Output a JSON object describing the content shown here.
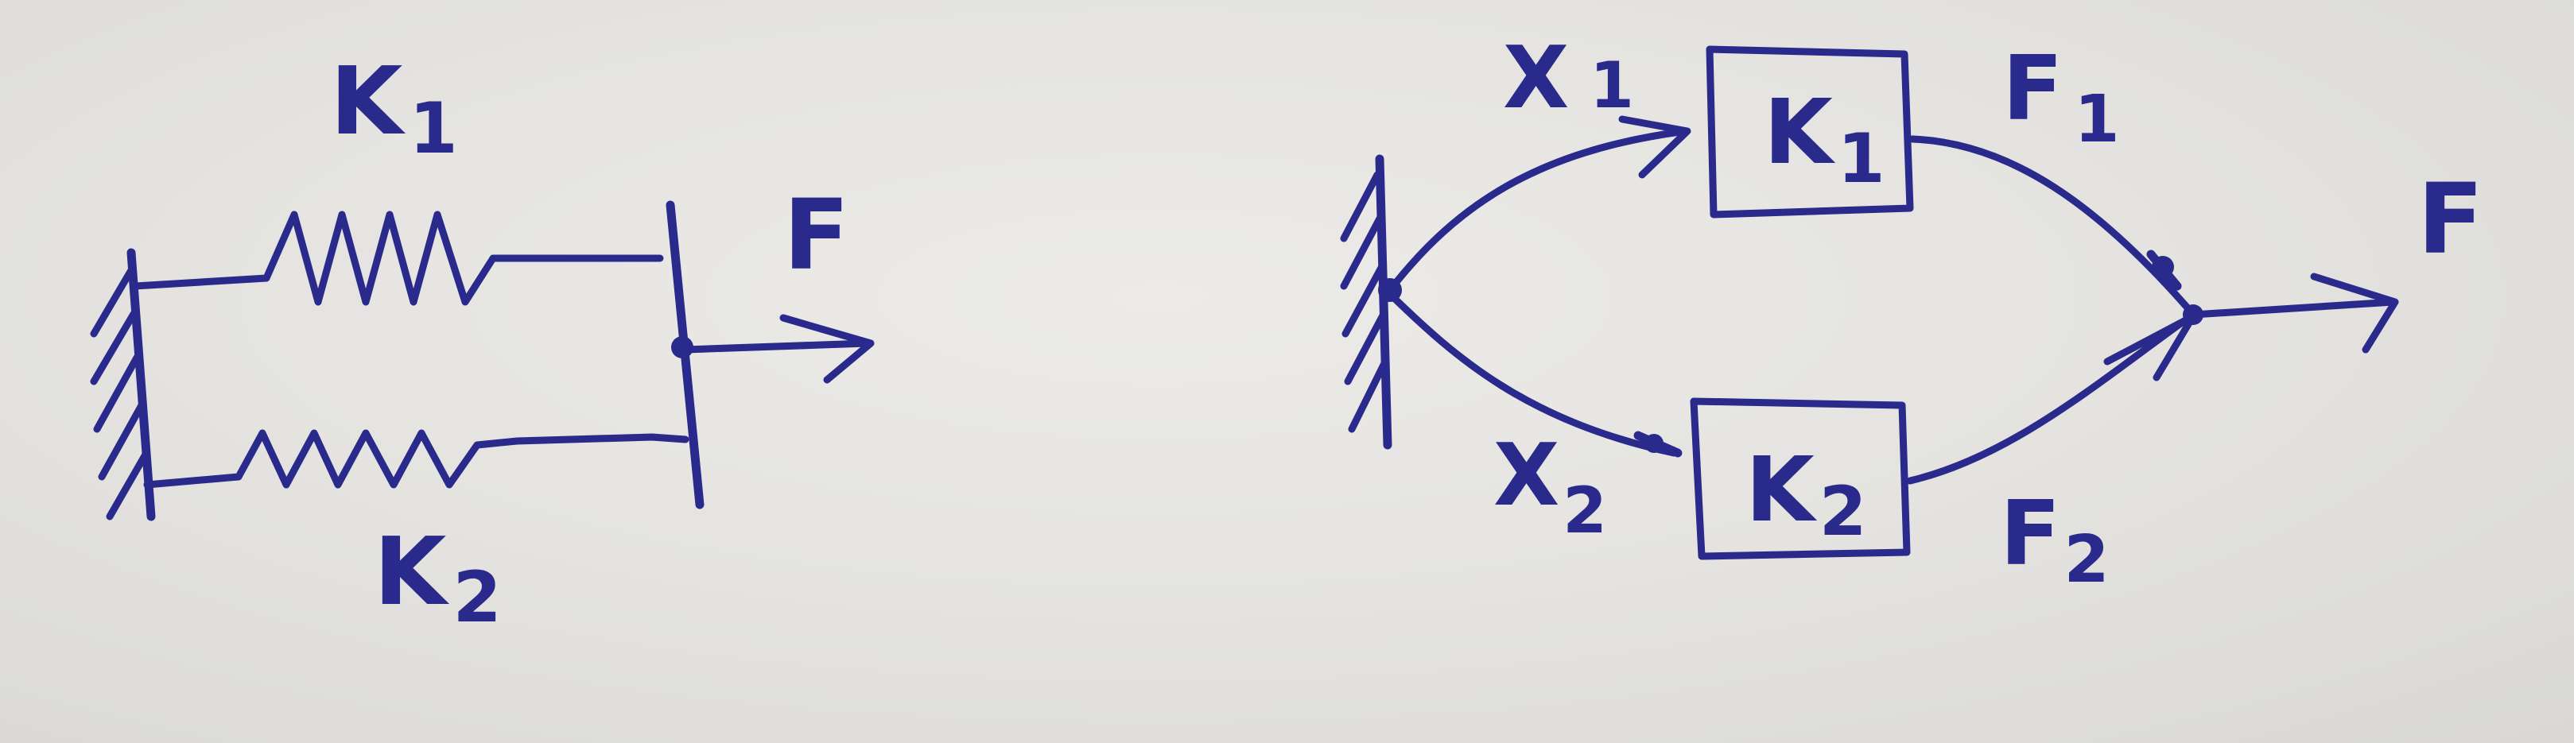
{
  "left_diagram": {
    "spring_top": {
      "name": "K",
      "subscript": "1"
    },
    "spring_bottom": {
      "name": "K",
      "subscript": "2"
    },
    "force": "F"
  },
  "right_diagram": {
    "input_top": {
      "name": "X",
      "subscript": "1"
    },
    "input_bottom": {
      "name": "X",
      "subscript": "2"
    },
    "block_top": {
      "name": "K",
      "subscript": "1"
    },
    "block_bottom": {
      "name": "K",
      "subscript": "2"
    },
    "output_top": {
      "name": "F",
      "subscript": "1"
    },
    "output_bottom": {
      "name": "F",
      "subscript": "2"
    },
    "force": "F"
  },
  "colors": {
    "ink": "#2a2a8c",
    "paper": "#e6e5e2"
  }
}
